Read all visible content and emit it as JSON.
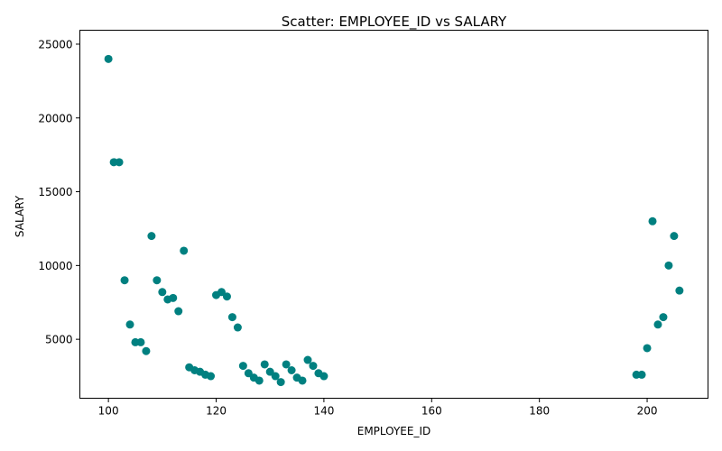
{
  "chart_data": {
    "type": "scatter",
    "title": "Scatter: EMPLOYEE_ID vs SALARY",
    "xlabel": "EMPLOYEE_ID",
    "ylabel": "SALARY",
    "xlim": [
      94.7,
      211.3
    ],
    "ylim": [
      1005,
      25945
    ],
    "grid": false,
    "marker_color": "#008080",
    "xticks": [
      100,
      120,
      140,
      160,
      180,
      200
    ],
    "yticks": [
      5000,
      10000,
      15000,
      20000,
      25000
    ],
    "xtick_labels": [
      "100",
      "120",
      "140",
      "160",
      "180",
      "200"
    ],
    "ytick_labels": [
      "5000",
      "10000",
      "15000",
      "20000",
      "25000"
    ],
    "series": [
      {
        "x": [
          100,
          101,
          102,
          103,
          104,
          105,
          106,
          107,
          108,
          109,
          110,
          111,
          112,
          113,
          114,
          115,
          116,
          117,
          118,
          119,
          120,
          121,
          122,
          123,
          124,
          125,
          126,
          127,
          128,
          129,
          130,
          131,
          132,
          133,
          134,
          135,
          136,
          137,
          138,
          139,
          140,
          198,
          199,
          200,
          201,
          202,
          203,
          204,
          205,
          206
        ],
        "y": [
          24000,
          17000,
          17000,
          9000,
          6000,
          4800,
          4800,
          4200,
          12000,
          9000,
          8200,
          7700,
          7800,
          6900,
          11000,
          3100,
          2900,
          2800,
          2600,
          2500,
          8000,
          8200,
          7900,
          6500,
          5800,
          3200,
          2700,
          2400,
          2200,
          3300,
          2800,
          2500,
          2100,
          3300,
          2900,
          2400,
          2200,
          3600,
          3200,
          2700,
          2500,
          2600,
          2600,
          4400,
          13000,
          6000,
          6500,
          10000,
          12000,
          8300
        ]
      }
    ]
  }
}
